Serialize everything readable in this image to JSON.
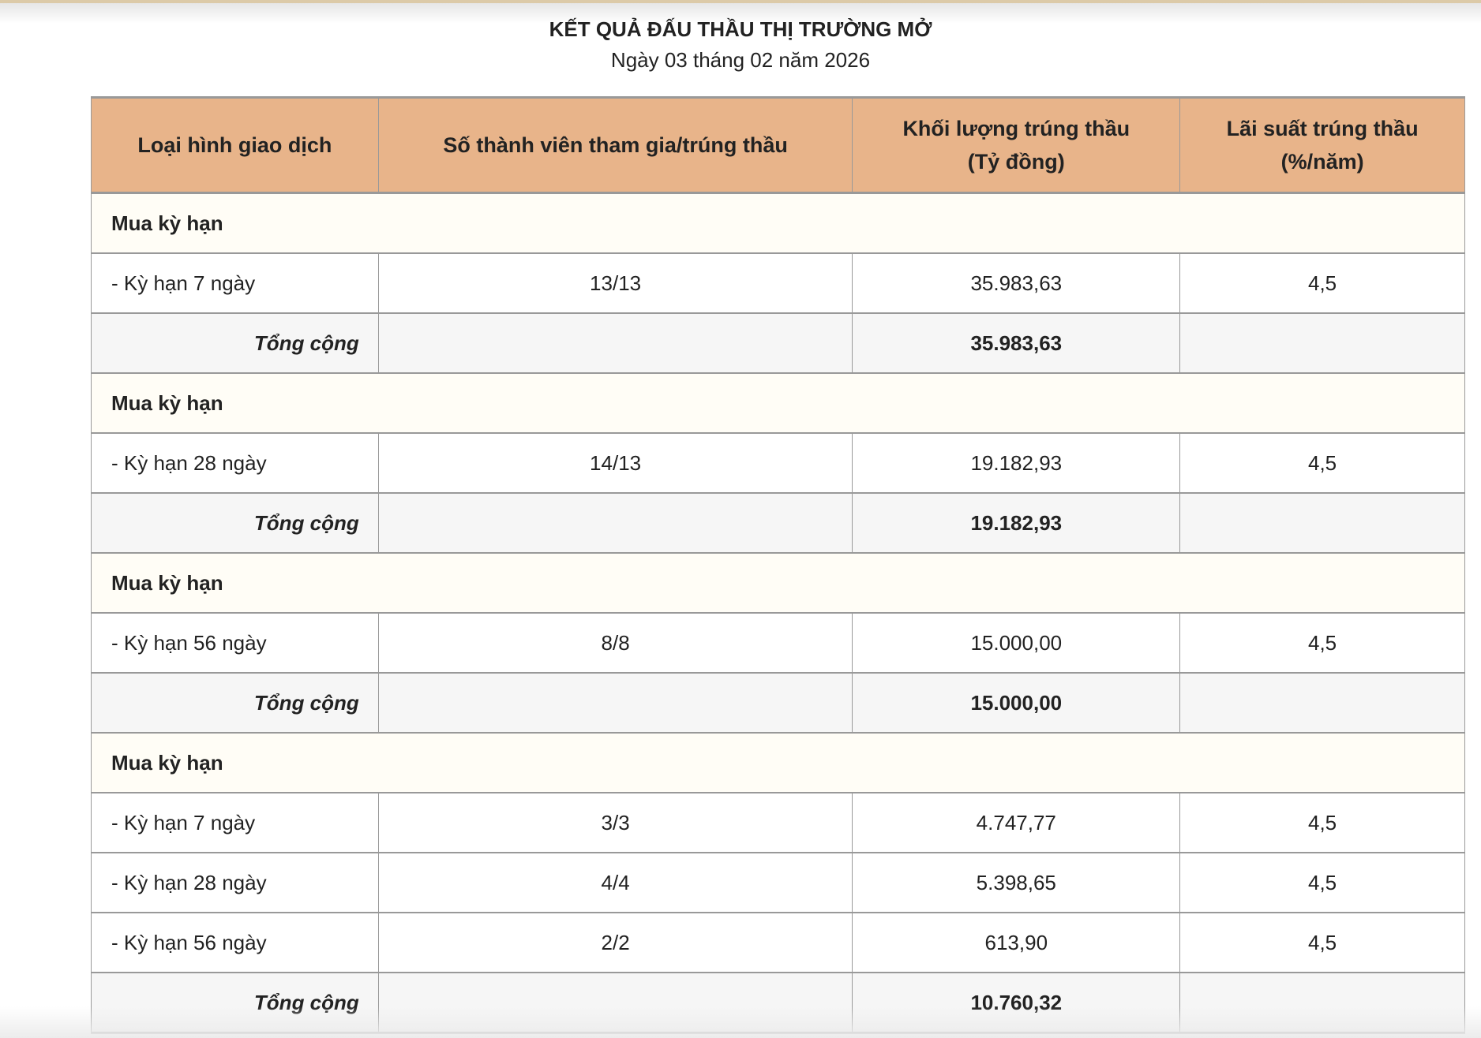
{
  "title": "KẾT QUẢ ĐẤU THẦU THỊ TRƯỜNG MỞ",
  "subtitle": "Ngày 03 tháng 02 năm 2026",
  "colors": {
    "header_bg": "#e8b48a",
    "section_bg": "#fffdf6",
    "total_bg": "#f6f6f6",
    "top_bar": "#dccaa8"
  },
  "table": {
    "headers": [
      "Loại hình giao dịch",
      "Số thành viên tham gia/trúng thầu",
      "Khối lượng trúng thầu\n(Tỷ đồng)",
      "Lãi suất trúng thầu\n(%/năm)"
    ],
    "header_lines": [
      [
        "Loại hình giao dịch"
      ],
      [
        "Số thành viên tham gia/trúng thầu"
      ],
      [
        "Khối lượng trúng thầu",
        "(Tỷ đồng)"
      ],
      [
        "Lãi suất trúng thầu",
        "(%/năm)"
      ]
    ],
    "groups": [
      {
        "section": "Mua kỳ hạn",
        "rows": [
          [
            "- Kỳ hạn 7 ngày",
            "13/13",
            "35.983,63",
            "4,5"
          ]
        ],
        "total_label": "Tổng cộng",
        "total": "35.983,63"
      },
      {
        "section": "Mua kỳ hạn",
        "rows": [
          [
            "- Kỳ hạn 28 ngày",
            "14/13",
            "19.182,93",
            "4,5"
          ]
        ],
        "total_label": "Tổng cộng",
        "total": "19.182,93"
      },
      {
        "section": "Mua kỳ hạn",
        "rows": [
          [
            "- Kỳ hạn 56 ngày",
            "8/8",
            "15.000,00",
            "4,5"
          ]
        ],
        "total_label": "Tổng cộng",
        "total": "15.000,00"
      },
      {
        "section": "Mua kỳ hạn",
        "rows": [
          [
            "- Kỳ hạn 7 ngày",
            "3/3",
            "4.747,77",
            "4,5"
          ],
          [
            "- Kỳ hạn 28 ngày",
            "4/4",
            "5.398,65",
            "4,5"
          ],
          [
            "- Kỳ hạn 56 ngày",
            "2/2",
            "613,90",
            "4,5"
          ]
        ],
        "total_label": "Tổng cộng",
        "total": "10.760,32"
      }
    ]
  }
}
